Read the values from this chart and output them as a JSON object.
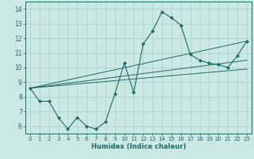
{
  "title": "",
  "xlabel": "Humidex (Indice chaleur)",
  "bg_color": "#cce8e4",
  "line_color": "#1a6b6b",
  "grid_color": "#a8d0cc",
  "xlim": [
    -0.5,
    23.5
  ],
  "ylim": [
    5.5,
    14.5
  ],
  "xticks": [
    0,
    1,
    2,
    3,
    4,
    5,
    6,
    7,
    8,
    9,
    10,
    11,
    12,
    13,
    14,
    15,
    16,
    17,
    18,
    19,
    20,
    21,
    22,
    23
  ],
  "yticks": [
    6,
    7,
    8,
    9,
    10,
    11,
    12,
    13,
    14
  ],
  "main_series": {
    "x": [
      0,
      1,
      2,
      3,
      4,
      5,
      6,
      7,
      8,
      9,
      10,
      11,
      12,
      13,
      14,
      15,
      16,
      17,
      18,
      19,
      20,
      21,
      22,
      23
    ],
    "y": [
      8.6,
      7.7,
      7.7,
      6.6,
      5.8,
      6.6,
      6.0,
      5.8,
      6.3,
      8.2,
      10.3,
      8.3,
      11.6,
      12.5,
      13.8,
      13.4,
      12.9,
      10.9,
      10.5,
      10.3,
      10.2,
      10.0,
      10.8,
      11.8
    ]
  },
  "straight_lines": [
    {
      "x": [
        0,
        23
      ],
      "y": [
        8.6,
        11.8
      ]
    },
    {
      "x": [
        0,
        23
      ],
      "y": [
        8.6,
        10.5
      ]
    },
    {
      "x": [
        0,
        23
      ],
      "y": [
        8.6,
        9.9
      ]
    }
  ]
}
